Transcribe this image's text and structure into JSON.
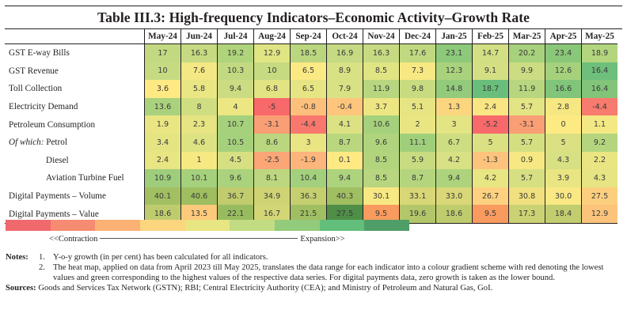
{
  "title": "Table III.3: High-frequency Indicators–Economic Activity–Growth Rate",
  "columns": [
    "May-24",
    "Jun-24",
    "Jul-24",
    "Aug-24",
    "Sep-24",
    "Oct-24",
    "Nov-24",
    "Dec-24",
    "Jan-25",
    "Feb-25",
    "Mar-25",
    "Apr-25",
    "May-25"
  ],
  "rows": [
    {
      "label": "GST E-way Bills",
      "prefix": "",
      "indent": false,
      "values": [
        "17",
        "16.3",
        "19.2",
        "12.9",
        "18.5",
        "16.9",
        "16.3",
        "17.6",
        "23.1",
        "14.7",
        "20.2",
        "23.4",
        "18.9"
      ],
      "colors": [
        "#c3d981",
        "#c7da82",
        "#b0d47c",
        "#e0e583",
        "#bad77f",
        "#c5da82",
        "#c7da82",
        "#c0d880",
        "#8dc97a",
        "#d3df83",
        "#a7d17c",
        "#8ac879",
        "#b3d57e"
      ]
    },
    {
      "label": "GST Revenue",
      "prefix": "",
      "indent": false,
      "values": [
        "10",
        "7.6",
        "10.3",
        "10",
        "6.5",
        "8.9",
        "8.5",
        "7.3",
        "12.3",
        "9.1",
        "9.9",
        "12.6",
        "16.4"
      ],
      "colors": [
        "#c6da82",
        "#f3e883",
        "#c3d981",
        "#c6da82",
        "#fbe983",
        "#d8e183",
        "#e0e483",
        "#f7e883",
        "#a9d27d",
        "#d4df83",
        "#cbdc82",
        "#a6d17c",
        "#6ebf7b"
      ]
    },
    {
      "label": "Toll Collection",
      "prefix": "",
      "indent": false,
      "values": [
        "3.6",
        "5.8",
        "9.4",
        "6.8",
        "6.5",
        "7.9",
        "11.9",
        "9.8",
        "14.8",
        "18.7",
        "11.9",
        "16.6",
        "16.4"
      ],
      "colors": [
        "#fee983",
        "#eae683",
        "#cbdc82",
        "#e2e483",
        "#e6e583",
        "#d8e183",
        "#b7d67f",
        "#c9db81",
        "#93cb7b",
        "#6abe7b",
        "#b7d67f",
        "#80c57a",
        "#82c57a"
      ]
    },
    {
      "label": "Electricity Demand",
      "prefix": "",
      "indent": false,
      "values": [
        "13.6",
        "8",
        "4",
        "-5",
        "-0.8",
        "-0.4",
        "3.7",
        "5.1",
        "1.3",
        "2.4",
        "5.7",
        "2.8",
        "-4.4"
      ],
      "colors": [
        "#aad27d",
        "#d0de82",
        "#ece683",
        "#f8696b",
        "#fdc07c",
        "#fec67c",
        "#ede683",
        "#e6e483",
        "#fcd57f",
        "#f9e583",
        "#e3e483",
        "#f6e783",
        "#f77b6e"
      ]
    },
    {
      "label": "Petroleum Consumption",
      "prefix": "",
      "indent": false,
      "values": [
        "1.9",
        "2.3",
        "10.7",
        "-3.1",
        "-4.4",
        "4.1",
        "10.6",
        "2",
        "3",
        "-5.2",
        "-3.1",
        "0",
        "1.1"
      ],
      "colors": [
        "#eae583",
        "#e6e483",
        "#a5d07c",
        "#fa9e75",
        "#f8786d",
        "#dce283",
        "#a6d17c",
        "#e9e583",
        "#e3e483",
        "#f8696b",
        "#fa9e75",
        "#feea83",
        "#f3e883"
      ]
    },
    {
      "label": "Petrol",
      "prefix": "Of which:",
      "indent": false,
      "values": [
        "3.4",
        "4.6",
        "10.5",
        "8.6",
        "3",
        "8.7",
        "9.6",
        "11.1",
        "6.7",
        "5",
        "5.7",
        "5",
        "9.2"
      ],
      "colors": [
        "#e5e483",
        "#dde283",
        "#a6d17c",
        "#bad77f",
        "#e9e583",
        "#b9d77e",
        "#b0d47d",
        "#a0cf7c",
        "#cddd82",
        "#dbe183",
        "#d4df82",
        "#dbe183",
        "#b4d57e"
      ]
    },
    {
      "label": "Diesel",
      "prefix": "",
      "indent": true,
      "values": [
        "2.4",
        "1",
        "4.5",
        "-2.5",
        "-1.9",
        "0.1",
        "8.5",
        "5.9",
        "4.2",
        "-1.3",
        "0.9",
        "4.3",
        "2.2"
      ],
      "colors": [
        "#e8e583",
        "#f6e883",
        "#d6e082",
        "#fba677",
        "#fcb57a",
        "#fee983",
        "#b1d47d",
        "#c8db81",
        "#d8e183",
        "#fdc37c",
        "#f7e883",
        "#d7e082",
        "#eae583"
      ]
    },
    {
      "label": "Aviation Turbine Fuel",
      "prefix": "",
      "indent": true,
      "values": [
        "10.9",
        "10.1",
        "9.6",
        "8.1",
        "10.4",
        "9.4",
        "8.5",
        "8.7",
        "9.4",
        "4.2",
        "5.7",
        "3.9",
        "4.3"
      ],
      "colors": [
        "#9ecd7c",
        "#a6d17c",
        "#abd27d",
        "#bcd77f",
        "#a3d07c",
        "#add37d",
        "#b7d67f",
        "#b4d57e",
        "#add37d",
        "#e8e583",
        "#d6e082",
        "#eae583",
        "#e6e483"
      ]
    },
    {
      "label": "Digital Payments – Volume",
      "prefix": "",
      "indent": false,
      "values": [
        "40.1",
        "40.6",
        "36.7",
        "34.9",
        "36.3",
        "40.3",
        "30.1",
        "33.1",
        "33.0",
        "26.7",
        "30.8",
        "30.0",
        "27.5"
      ],
      "colors": [
        "#a2c062",
        "#9ebe60",
        "#c1cc6e",
        "#cfd373",
        "#c5cf70",
        "#a0bf61",
        "#f8e883",
        "#d8d676",
        "#d9d777",
        "#fdd17f",
        "#f0e07f",
        "#f9e884",
        "#fccf7e"
      ]
    },
    {
      "label": "Digital Payments – Value",
      "prefix": "",
      "indent": false,
      "values": [
        "18.6",
        "13.5",
        "22.1",
        "16.7",
        "21.5",
        "27.5",
        "9.5",
        "19.6",
        "18.6",
        "9.5",
        "17.3",
        "18.4",
        "12.9"
      ],
      "colors": [
        "#bfcc6e",
        "#fdca7c",
        "#97bc5f",
        "#d4d676",
        "#9fbf62",
        "#4e8e47",
        "#f99a5f",
        "#b3c76a",
        "#bfcc6e",
        "#f99a5f",
        "#cbd273",
        "#c1cd6f",
        "#fcc47b"
      ]
    }
  ],
  "legend": {
    "colors": [
      "#f0696d",
      "#f58c71",
      "#fcb174",
      "#fcd57f",
      "#e8e583",
      "#c1dc82",
      "#92cb7b",
      "#63be7b",
      "#4f9e68"
    ],
    "left_label": "<<Contraction",
    "right_label": "Expansion>>"
  },
  "notes": {
    "heading": "Notes:",
    "items": [
      {
        "num": "1.",
        "text": "Y-o-y growth (in per cent) has been calculated for all indicators."
      },
      {
        "num": "2.",
        "text": "The heat map, applied on data from April 2023 till May 2025, translates the data range for each indicator into a colour gradient scheme with red denoting the lowest values and green corresponding to the highest values of the respective data series. For digital payments data, zero growth is taken as the lower bound."
      }
    ]
  },
  "sources": {
    "heading": "Sources:",
    "text": "Goods and Services Tax Network (GSTN); RBI; Central Electricity Authority (CEA); and Ministry of Petroleum and Natural Gas, GoI."
  }
}
